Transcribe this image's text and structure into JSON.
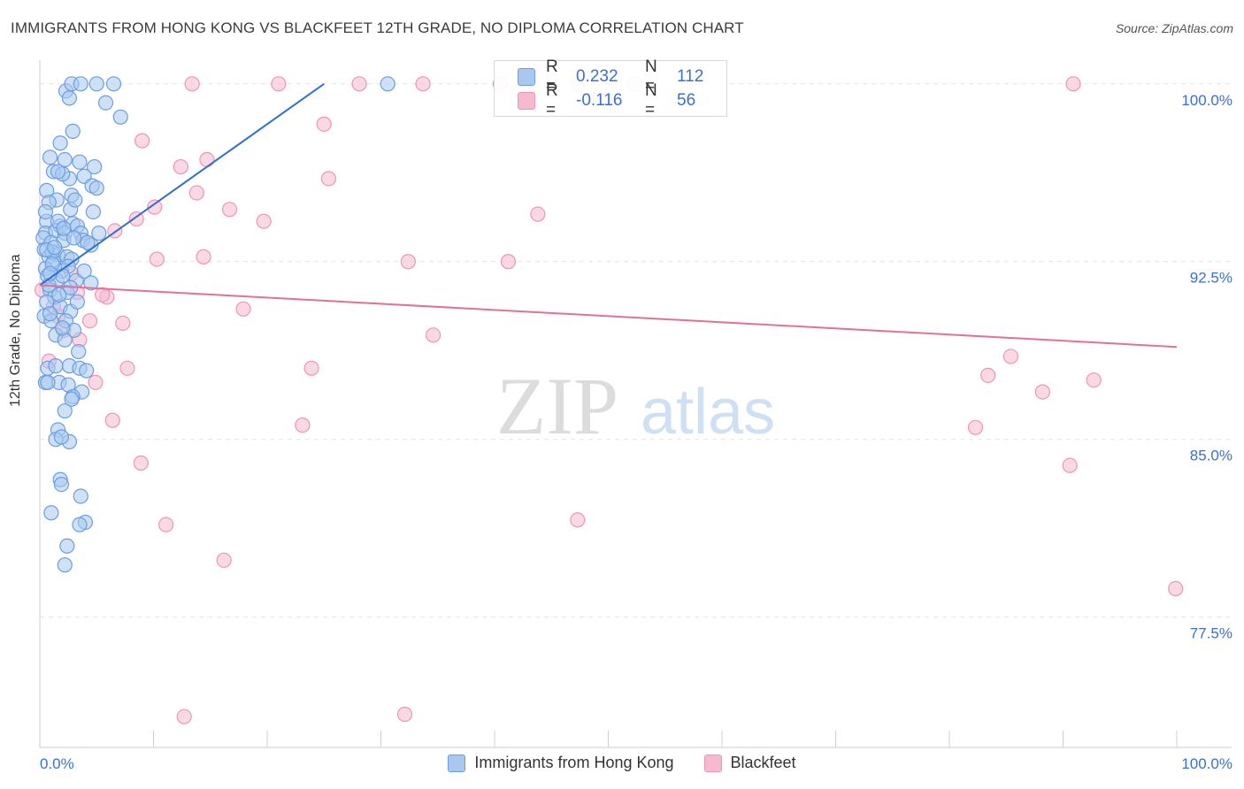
{
  "title": "IMMIGRANTS FROM HONG KONG VS BLACKFEET 12TH GRADE, NO DIPLOMA CORRELATION CHART",
  "source": "Source: ZipAtlas.com",
  "watermark": {
    "zip": "ZIP",
    "atlas": "atlas"
  },
  "stats": {
    "r_label": "R =",
    "n_label": "N =",
    "series1": {
      "r": "0.232",
      "n": "112"
    },
    "series2": {
      "r": "-0.116",
      "n": "56"
    }
  },
  "colors": {
    "blue_fill": "#a8c8f0",
    "blue_stroke": "#6a9ee0",
    "blue_line": "#2e6fd1",
    "pink_fill": "#f6b9cf",
    "pink_stroke": "#ef94b5",
    "pink_line": "#e2709c",
    "grid": "#e3e3e3",
    "axis_text_blue": "#3c6fd0"
  },
  "chart_data": {
    "type": "scatter",
    "title": "IMMIGRANTS FROM HONG KONG VS BLACKFEET 12TH GRADE, NO DIPLOMA CORRELATION CHART",
    "xlabel": "",
    "ylabel": "12th Grade, No Diploma",
    "xlim": [
      0,
      100
    ],
    "ylim": [
      72.0,
      101.0
    ],
    "x_tick_labels": [
      "0.0%",
      "100.0%"
    ],
    "y_ticks": [
      100.0,
      92.5,
      85.0,
      77.5
    ],
    "y_tick_labels": [
      "100.0%",
      "92.5%",
      "85.0%",
      "77.5%"
    ],
    "legend": [
      "Immigrants from Hong Kong",
      "Blackfeet"
    ],
    "series": [
      {
        "name": "Immigrants from Hong Kong",
        "trend": {
          "x": [
            0,
            25
          ],
          "y": [
            91.5,
            100.0
          ]
        },
        "points": [
          [
            2.3,
            99.7
          ],
          [
            2.8,
            100
          ],
          [
            3.6,
            100
          ],
          [
            5.0,
            100
          ],
          [
            6.5,
            100
          ],
          [
            2.6,
            99.4
          ],
          [
            5.8,
            99.2
          ],
          [
            7.1,
            98.6
          ],
          [
            2.9,
            98.0
          ],
          [
            1.8,
            97.5
          ],
          [
            0.9,
            96.9
          ],
          [
            2.2,
            96.8
          ],
          [
            3.5,
            96.7
          ],
          [
            4.8,
            96.5
          ],
          [
            2.6,
            96.0
          ],
          [
            1.2,
            96.3
          ],
          [
            2.0,
            96.2
          ],
          [
            3.9,
            96.1
          ],
          [
            4.6,
            95.7
          ],
          [
            0.6,
            95.5
          ],
          [
            2.8,
            95.3
          ],
          [
            5.0,
            95.6
          ],
          [
            1.5,
            95.1
          ],
          [
            0.8,
            95.0
          ],
          [
            2.7,
            94.7
          ],
          [
            4.7,
            94.6
          ],
          [
            0.6,
            94.2
          ],
          [
            1.8,
            94.0
          ],
          [
            2.9,
            94.1
          ],
          [
            3.3,
            94.0
          ],
          [
            0.5,
            93.7
          ],
          [
            1.4,
            93.8
          ],
          [
            2.2,
            93.7
          ],
          [
            3.6,
            93.7
          ],
          [
            5.2,
            93.7
          ],
          [
            0.3,
            93.5
          ],
          [
            1.0,
            93.3
          ],
          [
            2.1,
            93.4
          ],
          [
            3.8,
            93.4
          ],
          [
            4.5,
            93.2
          ],
          [
            0.4,
            93.0
          ],
          [
            1.6,
            92.8
          ],
          [
            2.4,
            92.7
          ],
          [
            0.8,
            92.7
          ],
          [
            1.2,
            92.5
          ],
          [
            2.8,
            92.6
          ],
          [
            0.5,
            92.2
          ],
          [
            1.9,
            92.1
          ],
          [
            0.7,
            91.9
          ],
          [
            1.5,
            91.7
          ],
          [
            3.2,
            91.7
          ],
          [
            4.5,
            91.6
          ],
          [
            0.9,
            91.3
          ],
          [
            2.4,
            91.2
          ],
          [
            1.3,
            91.0
          ],
          [
            0.6,
            90.8
          ],
          [
            1.8,
            90.6
          ],
          [
            2.7,
            90.4
          ],
          [
            0.4,
            90.2
          ],
          [
            1.0,
            90.0
          ],
          [
            2.3,
            90.0
          ],
          [
            3.0,
            89.6
          ],
          [
            1.4,
            89.4
          ],
          [
            0.7,
            88.0
          ],
          [
            2.6,
            88.1
          ],
          [
            3.5,
            88.0
          ],
          [
            4.1,
            87.9
          ],
          [
            0.5,
            87.4
          ],
          [
            1.7,
            87.4
          ],
          [
            2.5,
            87.3
          ],
          [
            3.7,
            87.0
          ],
          [
            2.9,
            86.8
          ],
          [
            2.2,
            86.2
          ],
          [
            1.6,
            85.4
          ],
          [
            1.4,
            85.0
          ],
          [
            2.6,
            84.9
          ],
          [
            1.8,
            83.3
          ],
          [
            1.9,
            83.1
          ],
          [
            3.6,
            82.6
          ],
          [
            1.0,
            81.9
          ],
          [
            4.0,
            81.5
          ],
          [
            3.5,
            81.4
          ],
          [
            2.4,
            80.5
          ],
          [
            2.2,
            79.7
          ],
          [
            30.6,
            100
          ],
          [
            1.6,
            94.2
          ],
          [
            2.1,
            93.9
          ],
          [
            3.0,
            93.5
          ],
          [
            1.1,
            92.9
          ],
          [
            2.5,
            92.3
          ],
          [
            0.8,
            91.5
          ],
          [
            1.7,
            91.1
          ],
          [
            3.3,
            90.8
          ],
          [
            0.6,
            93.0
          ],
          [
            1.3,
            93.1
          ],
          [
            2.0,
            91.9
          ],
          [
            3.9,
            92.1
          ],
          [
            0.9,
            90.3
          ],
          [
            2.2,
            89.2
          ],
          [
            1.4,
            88.1
          ],
          [
            0.7,
            87.4
          ],
          [
            2.8,
            86.7
          ],
          [
            1.9,
            85.1
          ],
          [
            1.1,
            92.4
          ],
          [
            2.7,
            91.4
          ],
          [
            0.5,
            94.6
          ],
          [
            1.6,
            96.3
          ],
          [
            3.1,
            95.1
          ],
          [
            4.2,
            93.3
          ],
          [
            0.9,
            92.0
          ],
          [
            2.0,
            89.7
          ],
          [
            3.4,
            88.7
          ]
        ]
      },
      {
        "name": "Blackfeet",
        "trend": {
          "x": [
            0,
            100
          ],
          "y": [
            91.5,
            88.9
          ]
        },
        "points": [
          [
            13.4,
            100
          ],
          [
            21.0,
            100
          ],
          [
            28.1,
            100
          ],
          [
            33.7,
            100
          ],
          [
            40.5,
            100
          ],
          [
            47.4,
            100
          ],
          [
            52.3,
            100
          ],
          [
            90.9,
            100
          ],
          [
            25.0,
            98.3
          ],
          [
            9.0,
            97.6
          ],
          [
            12.4,
            96.5
          ],
          [
            14.7,
            96.8
          ],
          [
            25.4,
            96.0
          ],
          [
            13.8,
            95.4
          ],
          [
            10.1,
            94.8
          ],
          [
            16.7,
            94.7
          ],
          [
            43.8,
            94.5
          ],
          [
            8.5,
            94.3
          ],
          [
            19.7,
            94.2
          ],
          [
            6.6,
            93.8
          ],
          [
            10.3,
            92.6
          ],
          [
            14.4,
            92.7
          ],
          [
            32.4,
            92.5
          ],
          [
            41.2,
            92.5
          ],
          [
            2.8,
            92.0
          ],
          [
            0.2,
            91.3
          ],
          [
            3.3,
            91.2
          ],
          [
            5.9,
            91.0
          ],
          [
            5.5,
            91.1
          ],
          [
            17.9,
            90.5
          ],
          [
            1.6,
            90.2
          ],
          [
            4.4,
            90.0
          ],
          [
            7.3,
            89.9
          ],
          [
            2.1,
            89.6
          ],
          [
            3.5,
            89.2
          ],
          [
            34.6,
            89.4
          ],
          [
            0.8,
            88.3
          ],
          [
            7.7,
            88.0
          ],
          [
            23.9,
            88.0
          ],
          [
            85.4,
            88.5
          ],
          [
            83.4,
            87.7
          ],
          [
            92.7,
            87.5
          ],
          [
            4.9,
            87.4
          ],
          [
            88.2,
            87.0
          ],
          [
            6.4,
            85.8
          ],
          [
            23.1,
            85.6
          ],
          [
            82.3,
            85.5
          ],
          [
            8.9,
            84.0
          ],
          [
            90.6,
            83.9
          ],
          [
            11.1,
            81.4
          ],
          [
            47.3,
            81.6
          ],
          [
            16.2,
            79.9
          ],
          [
            99.9,
            78.7
          ],
          [
            12.7,
            73.3
          ],
          [
            32.1,
            73.4
          ],
          [
            1.2,
            90.6
          ]
        ]
      }
    ]
  }
}
